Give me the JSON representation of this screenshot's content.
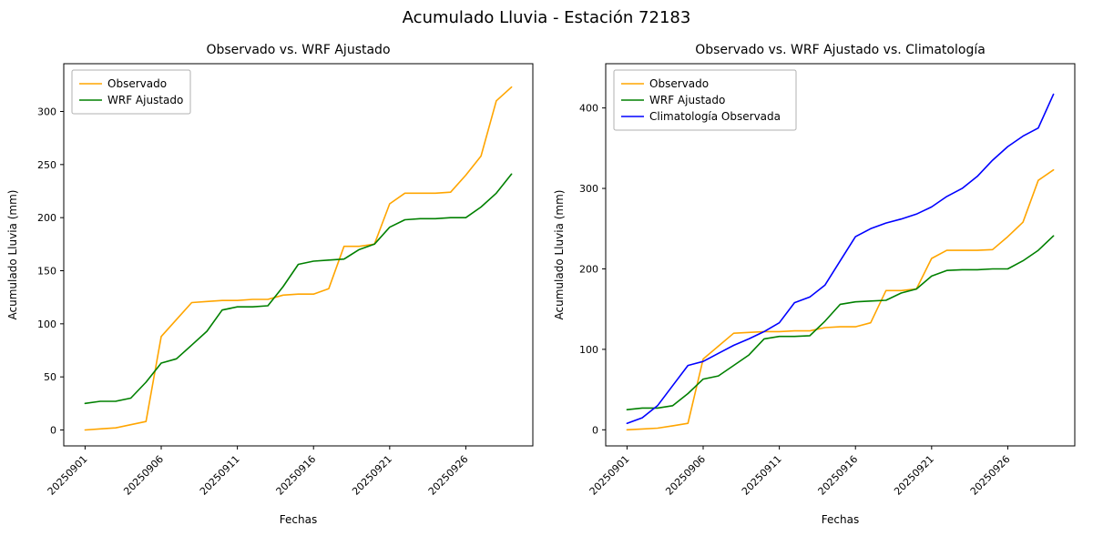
{
  "figure": {
    "title": "Acumulado Lluvia - Estación 72183"
  },
  "chart_data": [
    {
      "type": "line",
      "title": "Observado vs. WRF Ajustado",
      "xlabel": "Fechas",
      "ylabel": "Acumulado Lluvia (mm)",
      "legend_position": "upper left",
      "grid": false,
      "x": [
        "20250901",
        "20250902",
        "20250903",
        "20250904",
        "20250905",
        "20250906",
        "20250907",
        "20250908",
        "20250909",
        "20250910",
        "20250911",
        "20250912",
        "20250913",
        "20250914",
        "20250915",
        "20250916",
        "20250917",
        "20250918",
        "20250919",
        "20250920",
        "20250921",
        "20250922",
        "20250923",
        "20250924",
        "20250925",
        "20250926",
        "20250927",
        "20250928",
        "20250929"
      ],
      "xticks": [
        "20250901",
        "20250906",
        "20250911",
        "20250916",
        "20250921",
        "20250926"
      ],
      "yticks": [
        0,
        50,
        100,
        150,
        200,
        250,
        300
      ],
      "ylim": [
        -15,
        345
      ],
      "series": [
        {
          "name": "Observado",
          "color": "#ffa500",
          "values": [
            0,
            1,
            2,
            5,
            8,
            88,
            104,
            120,
            121,
            122,
            122,
            123,
            123,
            127,
            128,
            128,
            133,
            173,
            173,
            175,
            213,
            223,
            223,
            223,
            224,
            240,
            258,
            310,
            323
          ]
        },
        {
          "name": "WRF Ajustado",
          "color": "#008000",
          "values": [
            25,
            27,
            27,
            30,
            45,
            63,
            67,
            80,
            93,
            113,
            116,
            116,
            117,
            135,
            156,
            159,
            160,
            161,
            170,
            175,
            191,
            198,
            199,
            199,
            200,
            200,
            210,
            223,
            241
          ]
        }
      ]
    },
    {
      "type": "line",
      "title": "Observado vs. WRF Ajustado vs. Climatología",
      "xlabel": "Fechas",
      "ylabel": "Acumulado Lluvia (mm)",
      "legend_position": "upper left",
      "grid": false,
      "x": [
        "20250901",
        "20250902",
        "20250903",
        "20250904",
        "20250905",
        "20250906",
        "20250907",
        "20250908",
        "20250909",
        "20250910",
        "20250911",
        "20250912",
        "20250913",
        "20250914",
        "20250915",
        "20250916",
        "20250917",
        "20250918",
        "20250919",
        "20250920",
        "20250921",
        "20250922",
        "20250923",
        "20250924",
        "20250925",
        "20250926",
        "20250927",
        "20250928",
        "20250929"
      ],
      "xticks": [
        "20250901",
        "20250906",
        "20250911",
        "20250916",
        "20250921",
        "20250926"
      ],
      "yticks": [
        0,
        100,
        200,
        300,
        400
      ],
      "ylim": [
        -20,
        455
      ],
      "series": [
        {
          "name": "Observado",
          "color": "#ffa500",
          "values": [
            0,
            1,
            2,
            5,
            8,
            88,
            104,
            120,
            121,
            122,
            122,
            123,
            123,
            127,
            128,
            128,
            133,
            173,
            173,
            175,
            213,
            223,
            223,
            223,
            224,
            240,
            258,
            310,
            323
          ]
        },
        {
          "name": "WRF Ajustado",
          "color": "#008000",
          "values": [
            25,
            27,
            27,
            30,
            45,
            63,
            67,
            80,
            93,
            113,
            116,
            116,
            117,
            135,
            156,
            159,
            160,
            161,
            170,
            175,
            191,
            198,
            199,
            199,
            200,
            200,
            210,
            223,
            241
          ]
        },
        {
          "name": "Climatología Observada",
          "color": "#0000ff",
          "values": [
            8,
            15,
            30,
            55,
            80,
            85,
            95,
            105,
            113,
            122,
            133,
            158,
            165,
            180,
            210,
            240,
            250,
            257,
            262,
            268,
            277,
            290,
            300,
            315,
            335,
            352,
            365,
            375,
            417
          ]
        }
      ]
    }
  ]
}
